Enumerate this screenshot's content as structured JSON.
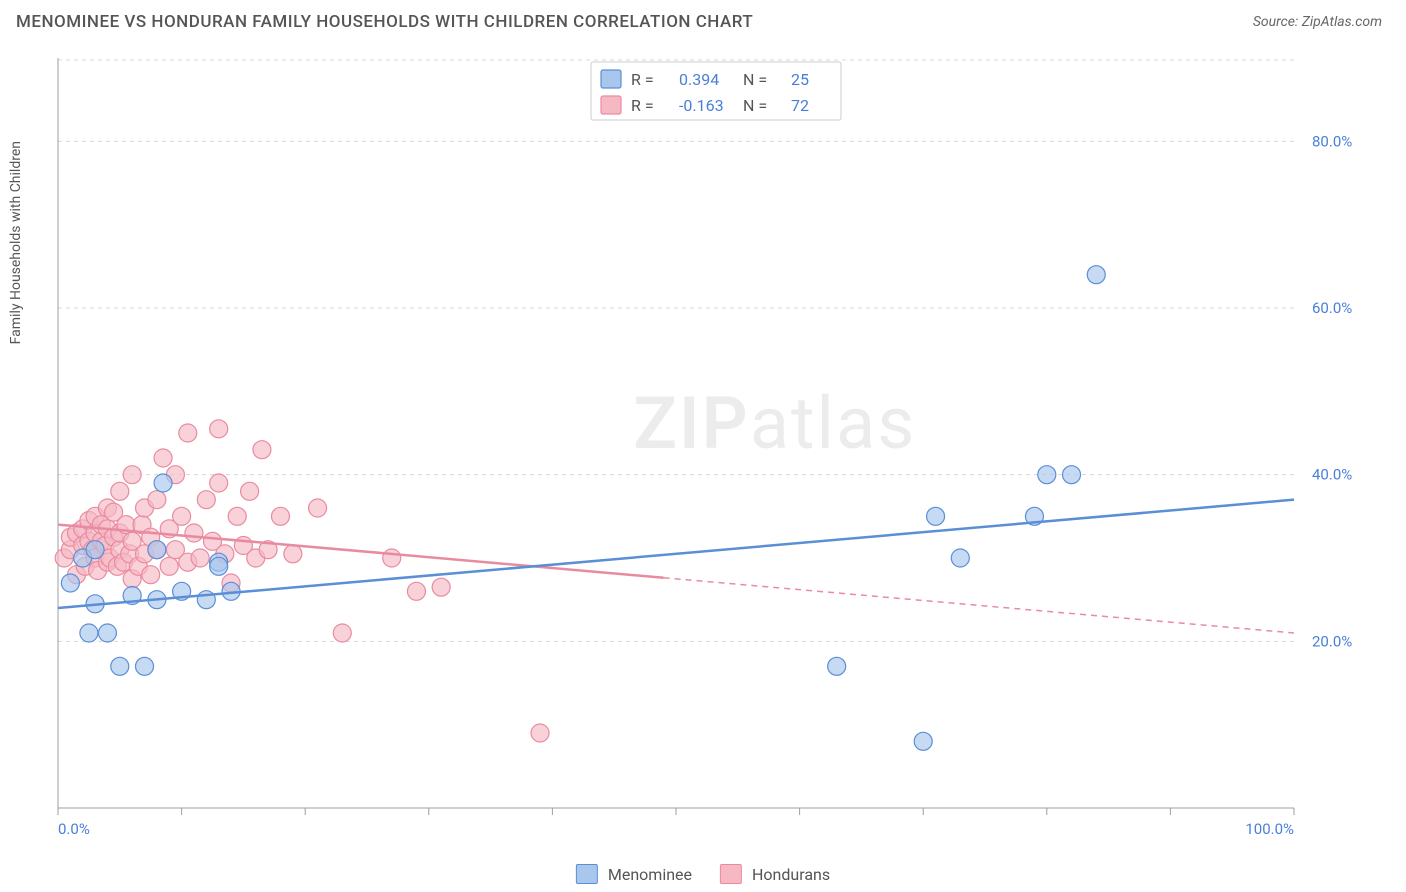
{
  "title": "MENOMINEE VS HONDURAN FAMILY HOUSEHOLDS WITH CHILDREN CORRELATION CHART",
  "source_label": "Source: ZipAtlas.com",
  "ylabel": "Family Households with Children",
  "watermark": {
    "part1": "ZIP",
    "part2": "atlas"
  },
  "chart": {
    "type": "scatter",
    "background_color": "#ffffff",
    "grid_color": "#d8d8d8",
    "axis_color": "#9aa0a6",
    "tick_label_color": "#4a7fd8",
    "xlim": [
      0,
      100
    ],
    "ylim": [
      0,
      90
    ],
    "x_ticks": [
      0,
      10,
      20,
      30,
      40,
      50,
      60,
      70,
      80,
      90,
      100
    ],
    "x_tick_labels": {
      "0": "0.0%",
      "100": "100.0%"
    },
    "y_ticks": [
      20,
      40,
      60,
      80
    ],
    "y_tick_labels": {
      "20": "20.0%",
      "40": "40.0%",
      "60": "60.0%",
      "80": "80.0%"
    },
    "marker_radius": 9,
    "marker_stroke_width": 1.2,
    "line_width": 2.5
  },
  "series": [
    {
      "name": "Menominee",
      "fill_color": "#a9c6ec",
      "stroke_color": "#5a8fd6",
      "fill_opacity": 0.65,
      "r_value": "0.394",
      "n_value": "25",
      "regression": {
        "x1": 0,
        "y1": 24,
        "x2": 100,
        "y2": 37,
        "solid_to_x": 100
      },
      "points": [
        [
          1,
          27
        ],
        [
          2,
          30
        ],
        [
          2.5,
          21
        ],
        [
          3,
          24.5
        ],
        [
          3,
          31
        ],
        [
          4,
          21
        ],
        [
          5,
          17
        ],
        [
          6,
          25.5
        ],
        [
          7,
          17
        ],
        [
          8,
          31
        ],
        [
          8,
          25
        ],
        [
          8.5,
          39
        ],
        [
          10,
          26
        ],
        [
          12,
          25
        ],
        [
          13,
          29.5
        ],
        [
          13,
          29
        ],
        [
          14,
          26
        ],
        [
          63,
          17
        ],
        [
          70,
          8
        ],
        [
          71,
          35
        ],
        [
          73,
          30
        ],
        [
          79,
          35
        ],
        [
          80,
          40
        ],
        [
          82,
          40
        ],
        [
          84,
          64
        ]
      ]
    },
    {
      "name": "Hondurans",
      "fill_color": "#f6b9c4",
      "stroke_color": "#e98ba0",
      "fill_opacity": 0.65,
      "r_value": "-0.163",
      "n_value": "72",
      "regression": {
        "x1": 0,
        "y1": 34,
        "x2": 100,
        "y2": 21,
        "solid_to_x": 49
      },
      "points": [
        [
          0.5,
          30
        ],
        [
          1,
          31
        ],
        [
          1,
          32.5
        ],
        [
          1.5,
          28
        ],
        [
          1.5,
          33
        ],
        [
          2,
          31.5
        ],
        [
          2,
          33.5
        ],
        [
          2.2,
          29
        ],
        [
          2.5,
          32
        ],
        [
          2.5,
          34.5
        ],
        [
          2.8,
          31
        ],
        [
          3,
          30
        ],
        [
          3,
          33
        ],
        [
          3,
          35
        ],
        [
          3.2,
          28.5
        ],
        [
          3.5,
          32
        ],
        [
          3.5,
          34
        ],
        [
          3.8,
          31.5
        ],
        [
          4,
          29.5
        ],
        [
          4,
          33.5
        ],
        [
          4,
          36
        ],
        [
          4.2,
          30
        ],
        [
          4.5,
          32.5
        ],
        [
          4.5,
          35.5
        ],
        [
          4.8,
          29
        ],
        [
          5,
          31
        ],
        [
          5,
          33
        ],
        [
          5,
          38
        ],
        [
          5.3,
          29.5
        ],
        [
          5.5,
          34
        ],
        [
          5.8,
          30.5
        ],
        [
          6,
          27.5
        ],
        [
          6,
          32
        ],
        [
          6,
          40
        ],
        [
          6.5,
          29
        ],
        [
          6.8,
          34
        ],
        [
          7,
          30.5
        ],
        [
          7,
          36
        ],
        [
          7.5,
          28
        ],
        [
          7.5,
          32.5
        ],
        [
          8,
          31
        ],
        [
          8,
          37
        ],
        [
          8.5,
          42
        ],
        [
          9,
          29
        ],
        [
          9,
          33.5
        ],
        [
          9.5,
          31
        ],
        [
          9.5,
          40
        ],
        [
          10,
          35
        ],
        [
          10.5,
          29.5
        ],
        [
          10.5,
          45
        ],
        [
          11,
          33
        ],
        [
          11.5,
          30
        ],
        [
          12,
          37
        ],
        [
          12.5,
          32
        ],
        [
          13,
          39
        ],
        [
          13,
          45.5
        ],
        [
          13.5,
          30.5
        ],
        [
          14,
          27
        ],
        [
          14.5,
          35
        ],
        [
          15,
          31.5
        ],
        [
          15.5,
          38
        ],
        [
          16,
          30
        ],
        [
          16.5,
          43
        ],
        [
          17,
          31
        ],
        [
          18,
          35
        ],
        [
          19,
          30.5
        ],
        [
          21,
          36
        ],
        [
          23,
          21
        ],
        [
          27,
          30
        ],
        [
          29,
          26
        ],
        [
          31,
          26.5
        ],
        [
          39,
          9
        ]
      ]
    }
  ],
  "stats_legend": {
    "r_label": "R  =",
    "n_label": "N  ="
  },
  "bottom_legend": [
    {
      "label": "Menominee",
      "fill": "#a9c6ec",
      "stroke": "#5a8fd6"
    },
    {
      "label": "Hondurans",
      "fill": "#f6b9c4",
      "stroke": "#e98ba0"
    }
  ]
}
